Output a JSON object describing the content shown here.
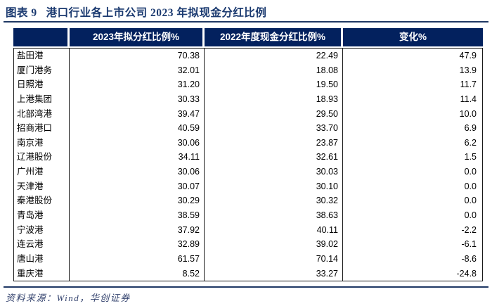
{
  "figure": {
    "label": "图表 9",
    "title": "港口行业各上市公司 2023 年拟现金分红比例",
    "source": "资料来源：Wind，华创证券"
  },
  "chart_data": {
    "type": "table",
    "title": "图表 9 港口行业各上市公司 2023 年拟现金分红比例",
    "columns": [
      "",
      "2023年拟分红比例%",
      "2022年度现金分红比例%",
      "变化%"
    ],
    "rows": [
      [
        "盐田港",
        "70.38",
        "22.49",
        "47.9"
      ],
      [
        "厦门港务",
        "32.01",
        "18.08",
        "13.9"
      ],
      [
        "日照港",
        "31.20",
        "19.50",
        "11.7"
      ],
      [
        "上港集团",
        "30.33",
        "18.93",
        "11.4"
      ],
      [
        "北部湾港",
        "39.47",
        "29.50",
        "10.0"
      ],
      [
        "招商港口",
        "40.59",
        "33.70",
        "6.9"
      ],
      [
        "南京港",
        "30.06",
        "23.87",
        "6.2"
      ],
      [
        "辽港股份",
        "34.11",
        "32.61",
        "1.5"
      ],
      [
        "广州港",
        "30.06",
        "30.03",
        "0.0"
      ],
      [
        "天津港",
        "30.07",
        "30.10",
        "0.0"
      ],
      [
        "秦港股份",
        "30.29",
        "30.32",
        "0.0"
      ],
      [
        "青岛港",
        "38.59",
        "38.63",
        "0.0"
      ],
      [
        "宁波港",
        "37.92",
        "40.11",
        "-2.2"
      ],
      [
        "连云港",
        "32.89",
        "39.02",
        "-6.1"
      ],
      [
        "唐山港",
        "61.57",
        "70.14",
        "-8.6"
      ],
      [
        "重庆港",
        "8.52",
        "33.27",
        "-24.8"
      ]
    ],
    "source_note": "资料来源：Wind，华创证券"
  },
  "colors": {
    "header_background": "#03215e",
    "header_text": "#ffffff",
    "title_text": "#1b3a70",
    "rule": "#1f3864",
    "body_text": "#000000",
    "table_border": "#1a1a1a",
    "source_text": "#35446f"
  }
}
